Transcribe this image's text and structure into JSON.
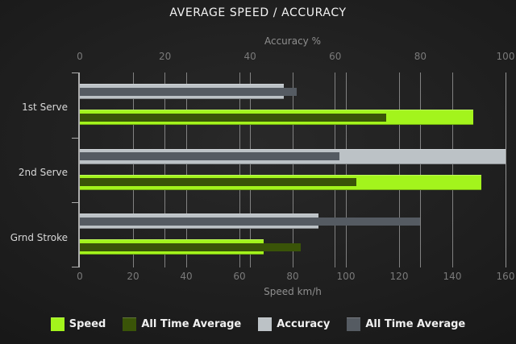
{
  "title": "AVERAGE SPEED / ACCURACY",
  "chart_data": {
    "type": "bar",
    "orientation": "horizontal",
    "title": "AVERAGE SPEED / ACCURACY",
    "categories": [
      "1st Serve",
      "2nd Serve",
      "Grnd Stroke"
    ],
    "axes": {
      "top": {
        "label": "Accuracy %",
        "min": 0,
        "max": 100,
        "ticks": [
          0,
          20,
          40,
          60,
          80,
          100
        ]
      },
      "bottom": {
        "label": "Speed km/h",
        "min": 0,
        "max": 160,
        "ticks": [
          0,
          20,
          40,
          60,
          80,
          100,
          120,
          140,
          160
        ]
      }
    },
    "series": [
      {
        "name": "Speed",
        "axis": "bottom",
        "role": "current",
        "color": "#a3f41c",
        "values": [
          148,
          151,
          69
        ]
      },
      {
        "name": "All Time Average",
        "axis": "bottom",
        "role": "all-time-average",
        "color": "#3a5408",
        "values": [
          115,
          104,
          83
        ]
      },
      {
        "name": "Accuracy",
        "axis": "top",
        "role": "current",
        "color": "#bcc2c6",
        "values": [
          48,
          100,
          56
        ]
      },
      {
        "name": "All Time Average",
        "axis": "top",
        "role": "all-time-average",
        "color": "#555b62",
        "values": [
          51,
          61,
          80
        ]
      }
    ],
    "grid": true,
    "legend_position": "bottom"
  },
  "legend": [
    {
      "label": "Speed",
      "color": "#a3f41c"
    },
    {
      "label": "All Time Average",
      "color": "#3a5408"
    },
    {
      "label": "Accuracy",
      "color": "#bcc2c6"
    },
    {
      "label": "All Time Average",
      "color": "#555b62"
    }
  ],
  "colors": {
    "background": "#1e1e1e",
    "grid": "#9a9a9a",
    "title": "#f3f3f3",
    "axis_label": "#8f8f8f",
    "tick_label": "#7a7a7a",
    "category_label": "#d8d8d8",
    "legend_label": "#f0f0f0"
  }
}
